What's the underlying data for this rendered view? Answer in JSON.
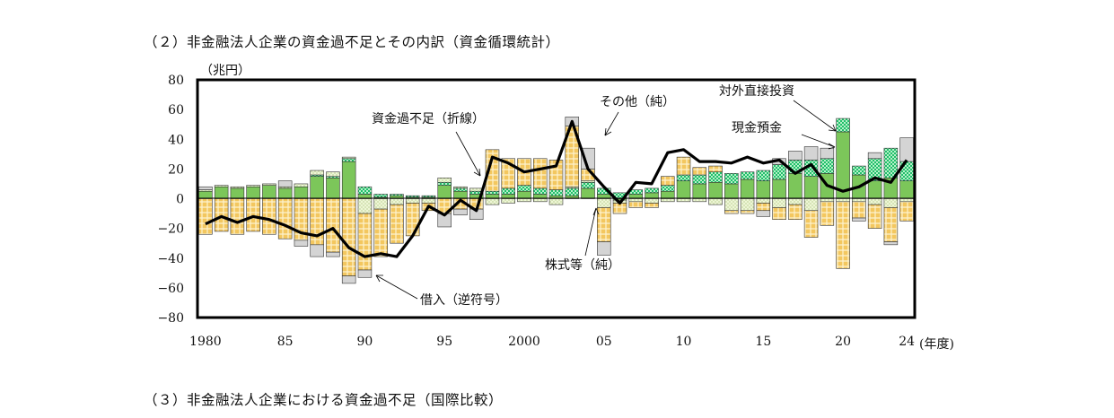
{
  "headings": {
    "section2": "（２）非金融法人企業の資金過不足とその内訳（資金循環統計）",
    "section3": "（３）非金融法人企業における資金過不足（国際比較）"
  },
  "colors": {
    "borrowing": "#f3c75f",
    "stocks": "#e6f2c6",
    "cash_deposits": "#7cc65a",
    "fdi": "#1fbf6a",
    "other": "#d4d4d4",
    "line": "#000000"
  },
  "chart_data": {
    "type": "bar",
    "unit_label": "（兆円）",
    "xlabel": "(年度)",
    "ylim": [
      -80,
      80
    ],
    "yticks": [
      80,
      60,
      40,
      20,
      0,
      -20,
      -40,
      -60,
      -80
    ],
    "ytick_labels": [
      "80",
      "60",
      "40",
      "20",
      "0",
      "−20",
      "−40",
      "−60",
      "−80"
    ],
    "xticks": [
      {
        "year": 1980,
        "label": "1980"
      },
      {
        "year": 1985,
        "label": "85"
      },
      {
        "year": 1990,
        "label": "90"
      },
      {
        "year": 1995,
        "label": "95"
      },
      {
        "year": 2000,
        "label": "2000"
      },
      {
        "year": 2005,
        "label": "05"
      },
      {
        "year": 2010,
        "label": "10"
      },
      {
        "year": 2015,
        "label": "15"
      },
      {
        "year": 2020,
        "label": "20"
      },
      {
        "year": 2024,
        "label": "24"
      }
    ],
    "x": [
      1980,
      1981,
      1982,
      1983,
      1984,
      1985,
      1986,
      1987,
      1988,
      1989,
      1990,
      1991,
      1992,
      1993,
      1994,
      1995,
      1996,
      1997,
      1998,
      1999,
      2000,
      2001,
      2002,
      2003,
      2004,
      2005,
      2006,
      2007,
      2008,
      2009,
      2010,
      2011,
      2012,
      2013,
      2014,
      2015,
      2016,
      2017,
      2018,
      2019,
      2020,
      2021,
      2022,
      2023,
      2024
    ],
    "stacked_components": [
      "cash_deposits",
      "fdi",
      "stocks",
      "borrowing",
      "other"
    ],
    "series": [
      {
        "key": "cash_deposits",
        "values": [
          5,
          8,
          7,
          8,
          9,
          7,
          8,
          15,
          14,
          25,
          3,
          1,
          2,
          1,
          1,
          9,
          5,
          3,
          3,
          3,
          5,
          3,
          2,
          2,
          7,
          3,
          -1,
          3,
          4,
          5,
          12,
          10,
          11,
          10,
          13,
          12,
          13,
          17,
          15,
          17,
          45,
          16,
          12,
          14,
          12
        ]
      },
      {
        "key": "fdi",
        "values": [
          0,
          0,
          0,
          0,
          0,
          0,
          0,
          1,
          1,
          2,
          5,
          2,
          1,
          1,
          1,
          2,
          2,
          2,
          2,
          4,
          4,
          4,
          4,
          5,
          4,
          4,
          4,
          3,
          3,
          4,
          4,
          6,
          7,
          7,
          5,
          7,
          10,
          9,
          11,
          10,
          9,
          6,
          15,
          20,
          13
        ]
      },
      {
        "key": "stocks",
        "values": [
          1,
          1,
          1,
          1,
          1,
          1,
          2,
          3,
          3,
          1,
          -10,
          -7,
          -4,
          -3,
          -3,
          3,
          1,
          2,
          -4,
          -3,
          -2,
          -2,
          -4,
          1,
          1,
          -6,
          -2,
          -2,
          -3,
          -2,
          -2,
          -2,
          -4,
          -8,
          -8,
          -3,
          -6,
          -4,
          -8,
          -2,
          -2,
          -2,
          -4,
          -6,
          -2
        ]
      },
      {
        "key": "borrowing",
        "values": [
          -24,
          -22,
          -24,
          -22,
          -24,
          -27,
          -28,
          -31,
          -36,
          -52,
          -38,
          -32,
          -26,
          -22,
          -5,
          -10,
          -7,
          -7,
          28,
          20,
          18,
          20,
          20,
          41,
          8,
          -23,
          -7,
          -4,
          -3,
          6,
          12,
          5,
          4,
          -2,
          -2,
          -5,
          -8,
          -10,
          -18,
          -16,
          -45,
          -11,
          -16,
          -23,
          -13
        ]
      },
      {
        "key": "other",
        "values": [
          2,
          0,
          0,
          0,
          0,
          4,
          -4,
          -8,
          -3,
          -5,
          -5,
          0,
          0,
          0,
          0,
          -9,
          -4,
          -7,
          0,
          0,
          0,
          0,
          0,
          6,
          14,
          -9,
          0,
          0,
          0,
          0,
          0,
          0,
          0,
          0,
          0,
          -4,
          4,
          6,
          9,
          7,
          0,
          -2,
          4,
          -2,
          16
        ]
      }
    ],
    "line": {
      "key": "financial_surplus_deficit",
      "values": [
        -17,
        -12,
        -16,
        -12,
        -14,
        -18,
        -23,
        -25,
        -20,
        -33,
        -39,
        -37,
        -39,
        -25,
        -5,
        -11,
        -1,
        -8,
        28,
        24,
        18,
        20,
        22,
        52,
        20,
        8,
        -3,
        11,
        10,
        31,
        33,
        25,
        25,
        24,
        28,
        24,
        26,
        17,
        23,
        9,
        5,
        8,
        14,
        11,
        26
      ]
    },
    "annotations": {
      "shortfall": "資金過不足（折線）",
      "other": "その他（純）",
      "fdi": "対外直接投資",
      "cash": "現金預金",
      "stocks": "株式等（純）",
      "borrowing": "借入（逆符号）"
    }
  }
}
